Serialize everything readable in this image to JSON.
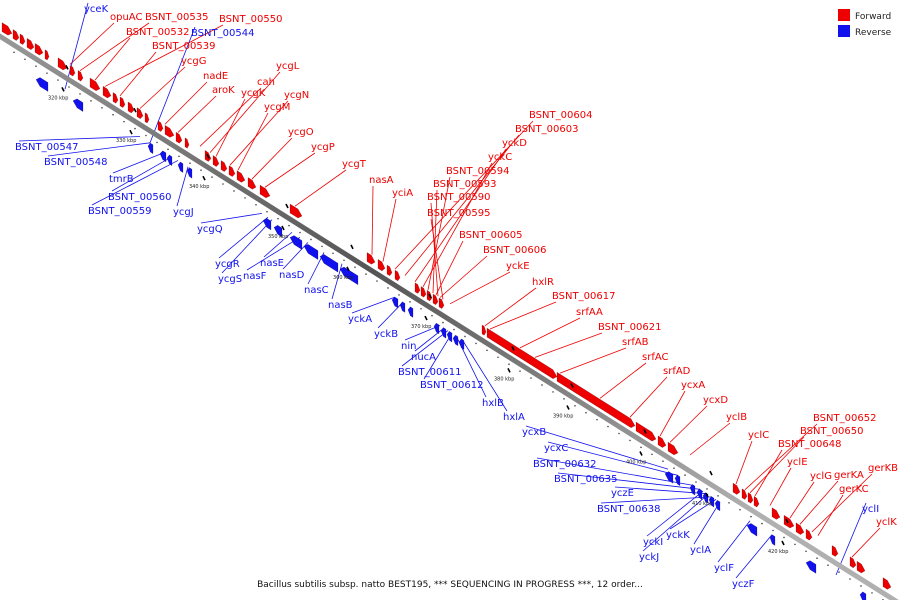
{
  "legend": [
    {
      "label": "Forward",
      "color": "#ee0000"
    },
    {
      "label": "Reverse",
      "color": "#1111ee"
    }
  ],
  "caption": "Bacillus subtilis subsp. natto BEST195, *** SEQUENCING IN PROGRESS ***, 12 order...",
  "ticks": [
    "320 kbp",
    "330 kbp",
    "340 kbp",
    "350 kbp",
    "360 kbp",
    "370 kbp",
    "380 kbp",
    "390 kbp",
    "400 kbp",
    "410 kbp",
    "420 kbp"
  ],
  "forward_labels": [
    "opuAC",
    "BSNT_00535",
    "BSNT_00550",
    "BSNT_00532",
    "BSNT_00539",
    "ycgG",
    "nadE",
    "aroK",
    "cah",
    "ycgL",
    "ycgK",
    "ycgN",
    "ycgM",
    "ycgO",
    "ycgP",
    "ycgT",
    "nasA",
    "yciA",
    "BSNT_00604",
    "BSNT_00603",
    "yckD",
    "yckC",
    "BSNT_00594",
    "BSNT_00593",
    "BSNT_00590",
    "BSNT_00595",
    "BSNT_00605",
    "BSNT_00606",
    "yckE",
    "hxlR",
    "BSNT_00617",
    "srfAA",
    "BSNT_00621",
    "srfAB",
    "srfAC",
    "srfAD",
    "ycxA",
    "ycxD",
    "yclB",
    "yclC",
    "BSNT_00652",
    "BSNT_00650",
    "BSNT_00648",
    "yclE",
    "yclG",
    "gerKA",
    "gerKB",
    "gerKC",
    "yclK"
  ],
  "reverse_labels": [
    "yceK",
    "BSNT_00544",
    "BSNT_00547",
    "BSNT_00548",
    "tmrB",
    "BSNT_00560",
    "BSNT_00559",
    "ycgJ",
    "ycgQ",
    "ycgR",
    "ycgS",
    "nasE",
    "nasF",
    "nasD",
    "nasC",
    "nasB",
    "yckA",
    "yckB",
    "nin",
    "nucA",
    "BSNT_00611",
    "BSNT_00612",
    "hxlB",
    "hxlA",
    "ycxB",
    "ycxC",
    "BSNT_00632",
    "BSNT_00635",
    "yczE",
    "BSNT_00638",
    "yckK",
    "yckI",
    "yckJ",
    "yclA",
    "yclF",
    "yczF",
    "yclI"
  ]
}
